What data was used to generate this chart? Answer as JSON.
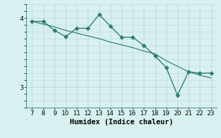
{
  "x": [
    7,
    8,
    9,
    10,
    11,
    12,
    13,
    14,
    15,
    16,
    17,
    18,
    19,
    20,
    21,
    22,
    23
  ],
  "y_data": [
    3.95,
    3.95,
    3.82,
    3.73,
    3.85,
    3.85,
    4.05,
    3.88,
    3.72,
    3.72,
    3.6,
    3.45,
    3.28,
    2.88,
    3.22,
    3.2,
    3.2
  ],
  "y_trend": [
    3.95,
    3.91,
    3.87,
    3.82,
    3.78,
    3.74,
    3.7,
    3.65,
    3.61,
    3.57,
    3.52,
    3.48,
    3.38,
    3.3,
    3.22,
    3.17,
    3.13
  ],
  "line_color": "#2e7d72",
  "bg_color": "#d8f0f0",
  "grid_color": "#b8d8d8",
  "xlabel": "Humidex (Indice chaleur)",
  "ylim": [
    2.7,
    4.2
  ],
  "xlim": [
    6.5,
    23.5
  ],
  "yticks": [
    3,
    4
  ],
  "xticks": [
    7,
    8,
    9,
    10,
    11,
    12,
    13,
    14,
    15,
    16,
    17,
    18,
    19,
    20,
    21,
    22,
    23
  ],
  "marker": "D",
  "marker_size": 3.0,
  "linewidth": 1.0,
  "xlabel_fontsize": 7.5,
  "tick_fontsize": 6.5
}
